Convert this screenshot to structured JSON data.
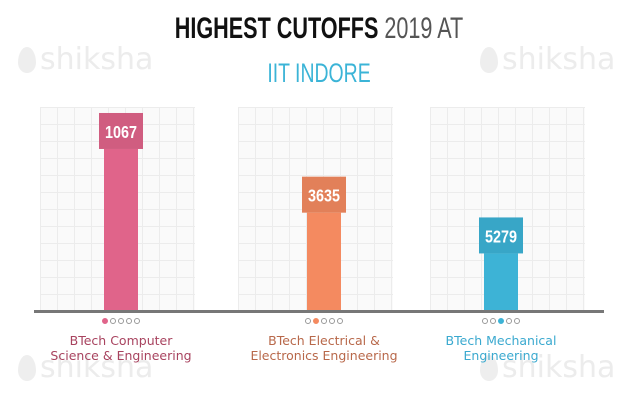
{
  "title": {
    "main": "HIGHEST CUTOFFS",
    "year": "2019 AT",
    "subtitle": "IIT INDORE"
  },
  "watermark": "shiksha",
  "chart_data": {
    "type": "bar",
    "title": "HIGHEST CUTOFFS 2019 AT IIT INDORE",
    "categories": [
      "BTech Computer Science & Engineering",
      "BTech Electrical & Electronics Engineering",
      "BTech Mechanical Engineering"
    ],
    "category_lines": [
      [
        "BTech Computer",
        "Science & Engineering"
      ],
      [
        "BTech Electrical &",
        "Electronics Engineering"
      ],
      [
        "BTech Mechanical",
        "Engineering"
      ]
    ],
    "values": [
      1067,
      3635,
      5279
    ],
    "value_labels": [
      "1067",
      "3635",
      "5279"
    ],
    "colors": [
      "#e0648a",
      "#f48a60",
      "#3db3d6"
    ],
    "label_colors": [
      "#a8435f",
      "#b8684a",
      "#3aa9cf"
    ],
    "note": "",
    "grid": true,
    "legend": "none"
  }
}
